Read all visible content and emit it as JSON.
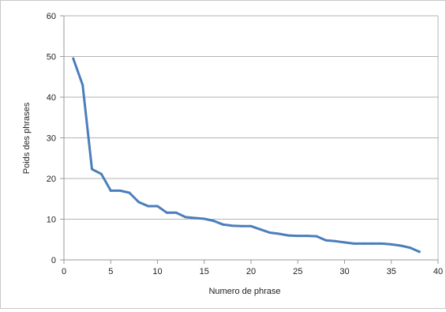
{
  "chart_data": {
    "type": "line",
    "title": "",
    "xlabel": "Numero de phrase",
    "ylabel": "Poids des phrases",
    "xlim": [
      0,
      40
    ],
    "ylim": [
      0,
      60
    ],
    "x_ticks": [
      "0",
      "5",
      "10",
      "15",
      "20",
      "25",
      "30",
      "35",
      "40"
    ],
    "y_ticks": [
      "0",
      "10",
      "20",
      "30",
      "40",
      "50",
      "60"
    ],
    "grid": "horizontal",
    "legend": "none",
    "line_color": "#4a7ebb",
    "series": [
      {
        "x": [
          1,
          2,
          3,
          4,
          5,
          6,
          7,
          8,
          9,
          10,
          11,
          12,
          13,
          14,
          15,
          16,
          17,
          18,
          19,
          20,
          21,
          22,
          23,
          24,
          25,
          26,
          27,
          28,
          29,
          30,
          31,
          32,
          33,
          34,
          35,
          36,
          37,
          38
        ],
        "values": [
          49.5,
          43,
          22.3,
          21.1,
          17,
          17,
          16.5,
          14.2,
          13.2,
          13.2,
          11.6,
          11.6,
          10.5,
          10.3,
          10.1,
          9.6,
          8.7,
          8.4,
          8.3,
          8.3,
          7.5,
          6.7,
          6.4,
          6.0,
          5.9,
          5.9,
          5.8,
          4.8,
          4.6,
          4.3,
          4.0,
          4.0,
          4.0,
          4.0,
          3.8,
          3.5,
          3.0,
          2.0
        ]
      }
    ]
  }
}
